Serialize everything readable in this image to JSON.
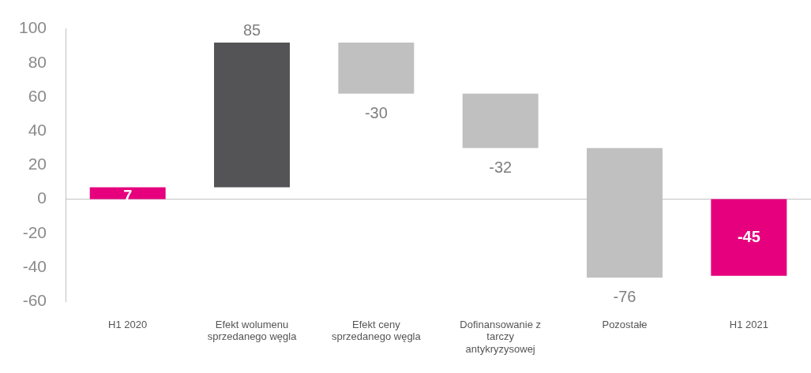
{
  "chart_data": {
    "type": "bar",
    "categories": [
      "H1 2020",
      "Efekt wolumenu sprzedanego węgla",
      "Efekt ceny sprzedanego węgla",
      "Dofinansowanie z tarczy antykryzysowej",
      "Pozostałe",
      "H1 2021"
    ],
    "values": [
      7,
      85,
      -30,
      -32,
      -76,
      -45
    ],
    "base": [
      0,
      7,
      92,
      62,
      30,
      0
    ],
    "colors": [
      "#e6007e",
      "#545456",
      "#c0c0c0",
      "#c0c0c0",
      "#c0c0c0",
      "#e6007e"
    ],
    "value_labels": [
      "7",
      "85",
      "-30",
      "-32",
      "-76",
      "-45"
    ],
    "ylim": [
      -60,
      100
    ],
    "yticks": [
      -60,
      -40,
      -20,
      0,
      20,
      40,
      60,
      80,
      100
    ],
    "ref_lines": [
      {
        "axis": "y",
        "value": 0,
        "color": "#c0c0c0"
      }
    ],
    "grid": false,
    "legend": false
  }
}
